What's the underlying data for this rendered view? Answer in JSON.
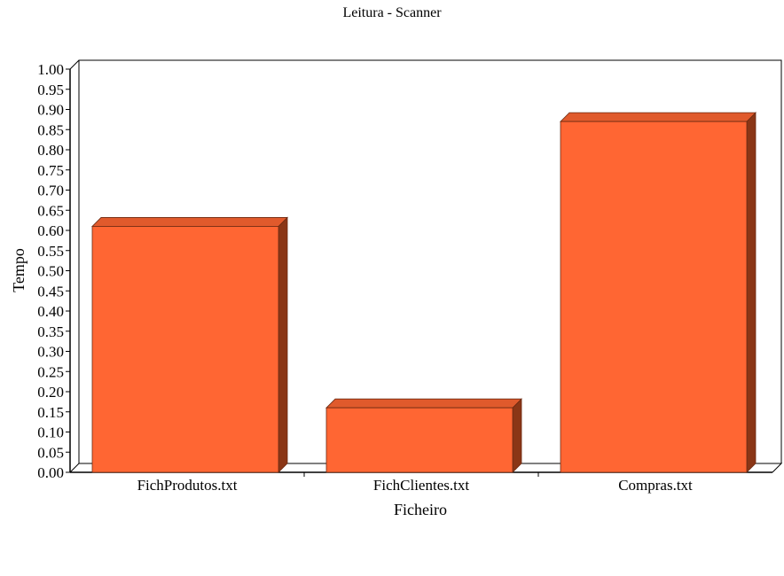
{
  "chart_data": {
    "type": "bar",
    "title": "Leitura - Scanner",
    "xlabel": "Ficheiro",
    "ylabel": "Tempo",
    "categories": [
      "FichProdutos.txt",
      "FichClientes.txt",
      "Compras.txt"
    ],
    "values": [
      0.61,
      0.16,
      0.87
    ],
    "ylim": [
      0,
      1.0
    ],
    "ytick_step": 0.05,
    "grid": false,
    "legend": "none",
    "colors": {
      "bar_front": "#ff6633",
      "bar_top": "#e05a2c",
      "bar_side": "#8a3616",
      "bar_edge": "#6b2a12",
      "axis": "#000000"
    }
  }
}
